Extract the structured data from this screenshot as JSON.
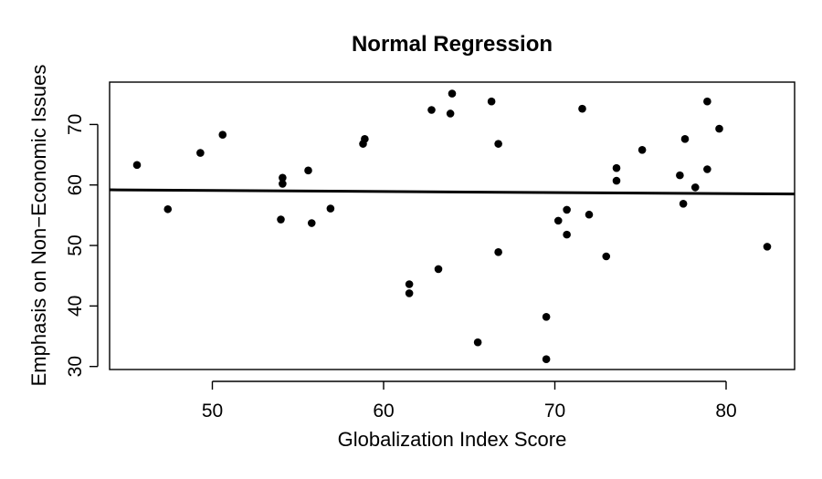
{
  "chart_data": {
    "type": "scatter",
    "title": "Normal Regression",
    "xlabel": "Globalization Index Score",
    "ylabel": "Emphasis on Non−Economic Issues",
    "xlim": [
      44.0,
      84.0
    ],
    "ylim": [
      29.5,
      77.0
    ],
    "x_ticks": [
      50,
      60,
      70,
      80
    ],
    "y_ticks": [
      30,
      40,
      50,
      60,
      70
    ],
    "x_tick_labels": [
      "50",
      "60",
      "70",
      "80"
    ],
    "y_tick_labels": [
      "30",
      "40",
      "50",
      "60",
      "70"
    ],
    "grid": false,
    "legend": "none",
    "series": [
      {
        "x": [
          45.6,
          47.4,
          49.3,
          50.6,
          54.0,
          54.1,
          54.1,
          55.6,
          55.8,
          56.9,
          58.8,
          58.9,
          61.5,
          61.5,
          62.8,
          63.2,
          63.9,
          64.0,
          65.5,
          66.3,
          66.7,
          66.7,
          69.5,
          69.5,
          70.2,
          70.7,
          70.7,
          71.6,
          72.0,
          73.0,
          73.6,
          73.6,
          75.1,
          77.3,
          77.5,
          77.6,
          78.2,
          78.9,
          78.9,
          79.6,
          82.4
        ],
        "y": [
          63.3,
          56.0,
          65.3,
          68.3,
          54.3,
          60.2,
          61.2,
          62.4,
          53.7,
          56.1,
          66.8,
          67.6,
          43.6,
          42.1,
          72.4,
          46.1,
          71.8,
          75.1,
          34.0,
          73.8,
          66.8,
          48.9,
          38.2,
          31.2,
          54.1,
          55.9,
          51.8,
          72.6,
          55.1,
          48.2,
          62.8,
          60.7,
          65.8,
          61.6,
          56.9,
          67.6,
          59.6,
          73.8,
          62.6,
          69.3,
          49.8
        ]
      }
    ],
    "regression_line": {
      "x": [
        44.0,
        84.0
      ],
      "y": [
        59.2,
        58.5
      ]
    }
  }
}
